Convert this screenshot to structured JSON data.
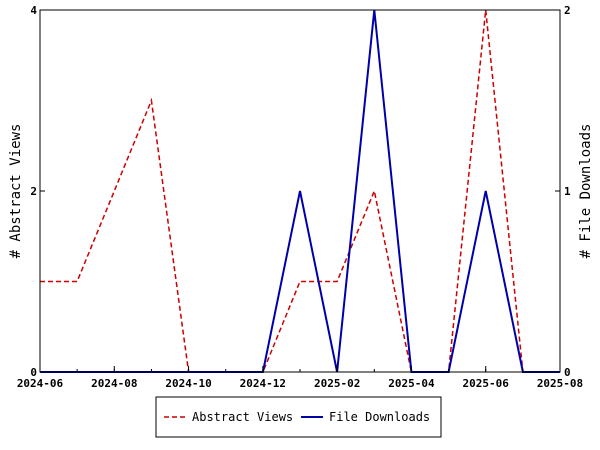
{
  "chart_data": {
    "type": "line",
    "x_ticks": [
      "2024-06",
      "2024-08",
      "2024-10",
      "2024-12",
      "2025-02",
      "2025-04",
      "2025-06",
      "2025-08"
    ],
    "x": [
      "2024-06",
      "2024-07",
      "2024-08",
      "2024-09",
      "2024-10",
      "2024-11",
      "2024-12",
      "2025-01",
      "2025-02",
      "2025-03",
      "2025-04",
      "2025-05",
      "2025-06",
      "2025-07",
      "2025-08"
    ],
    "xlim": [
      "2024-06",
      "2025-08"
    ],
    "ylabel_left": "# Abstract Views",
    "ylabel_right": "# File Downloads",
    "ylim_left": [
      0,
      4
    ],
    "ylim_right": [
      0,
      2
    ],
    "yticks_left": [
      "0",
      "2",
      "4"
    ],
    "yticks_right": [
      "0",
      "1",
      "2"
    ],
    "series": [
      {
        "name": "Abstract Views",
        "axis": "left",
        "color": "#cc0000",
        "style": "dashed",
        "values": [
          1,
          1,
          2,
          3,
          0,
          0,
          0,
          1,
          1,
          2,
          0,
          0,
          4,
          0,
          0
        ]
      },
      {
        "name": "File Downloads",
        "axis": "right",
        "color": "#0000aa",
        "style": "solid",
        "values": [
          0,
          0,
          0,
          0,
          0,
          0,
          0,
          1,
          0,
          2,
          0,
          0,
          1,
          0,
          0
        ]
      }
    ],
    "grid": false,
    "legend_position": "bottom-center"
  }
}
